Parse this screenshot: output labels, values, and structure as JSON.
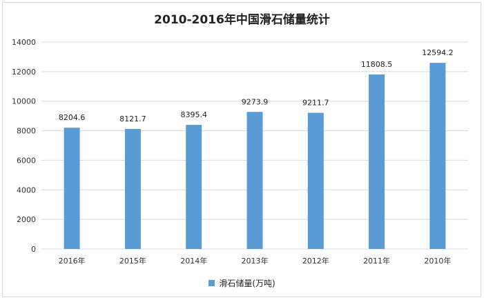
{
  "chart_data": {
    "type": "bar",
    "title": "2010-2016年中国滑石储量统计",
    "categories": [
      "2016年",
      "2015年",
      "2014年",
      "2013年",
      "2012年",
      "2011年",
      "2010年"
    ],
    "series": [
      {
        "name": "滑石储量(万吨)",
        "values": [
          8204.6,
          8121.7,
          8395.4,
          9273.9,
          9211.7,
          11808.5,
          12594.2
        ],
        "value_labels": [
          "8204.6",
          "8121.7",
          "8395.4",
          "9273.9",
          "9211.7",
          "11808.5",
          "12594.2"
        ]
      }
    ],
    "yticks": [
      0,
      2000,
      4000,
      6000,
      8000,
      10000,
      12000,
      14000
    ],
    "ylim": [
      0,
      14000
    ],
    "grid": true,
    "legend_position": "bottom",
    "bar_color": "#5b9bd5"
  }
}
